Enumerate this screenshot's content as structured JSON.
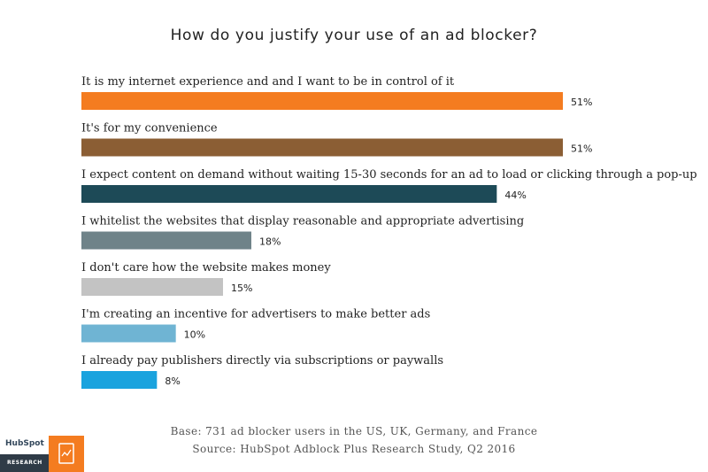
{
  "title": "How do you justify your use of an ad blocker?",
  "chart_data": {
    "type": "bar",
    "orientation": "horizontal",
    "title": "How do you justify your use of an ad blocker?",
    "xlim": [
      0,
      51
    ],
    "categories": [
      "It is my internet experience and and I want to be in control of it",
      "It's for my convenience",
      "I expect content on demand without waiting 15-30 seconds for an ad to load or clicking through a pop-up",
      "I whitelist the websites that display reasonable and appropriate advertising",
      "I don't care how the website makes money",
      "I'm creating an incentive for advertisers to make better ads",
      "I already pay publishers directly via subscriptions or paywalls"
    ],
    "values": [
      51,
      51,
      44,
      18,
      15,
      10,
      8
    ],
    "value_labels": [
      "51%",
      "51%",
      "44%",
      "18%",
      "15%",
      "10%",
      "8%"
    ],
    "colors": [
      "#f47c20",
      "#8b5e34",
      "#1d4a57",
      "#6f8389",
      "#c3c3c3",
      "#6fb4d3",
      "#1aa3de"
    ]
  },
  "footer": {
    "base": "Base: 731 ad blocker users in the US, UK, Germany, and France",
    "source": "Source: HubSpot Adblock Plus Research Study, Q2 2016"
  },
  "logo": {
    "brand": "HubSpot",
    "sub": "RESEARCH",
    "accent": "#f47c20"
  }
}
